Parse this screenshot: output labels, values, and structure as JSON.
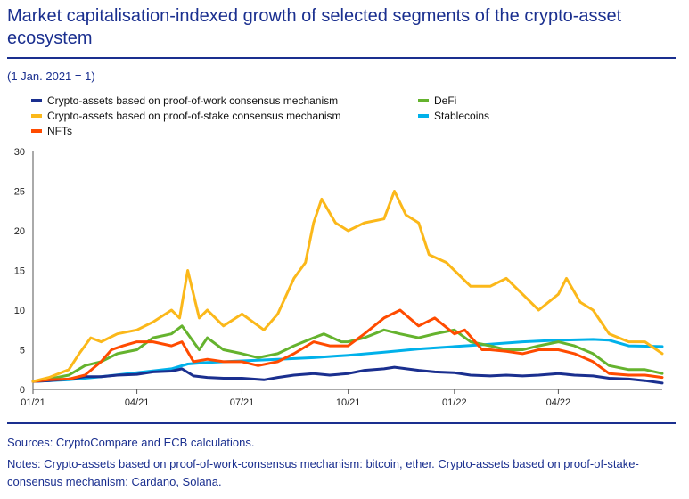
{
  "title": "Market capitalisation-indexed growth of selected segments of the crypto-asset ecosystem",
  "subtitle": "(1 Jan. 2021 = 1)",
  "sources": "Sources: CryptoCompare and ECB calculations.",
  "notes": "Notes: Crypto-assets based on proof-of-work-consensus mechanism: bitcoin, ether. Crypto-assets based on proof-of-stake-consensus mechanism: Cardano, Solana.",
  "chart_data": {
    "type": "line",
    "x_tick_labels": [
      "01/21",
      "04/21",
      "07/21",
      "10/21",
      "01/22",
      "04/22"
    ],
    "x_ticks": [
      "2021-01-01",
      "2021-04-01",
      "2021-07-01",
      "2021-10-01",
      "2022-01-01",
      "2022-04-01"
    ],
    "x_range": [
      "2021-01-01",
      "2022-06-30"
    ],
    "ylim": [
      0,
      30
    ],
    "y_ticks": [
      0,
      5,
      10,
      15,
      20,
      25,
      30
    ],
    "grid": false,
    "legend_position": "top",
    "series": [
      {
        "name": "Crypto-assets based on proof-of-work consensus mechanism",
        "color": "#1a2f8f",
        "points": [
          [
            "2021-01-01",
            1.0
          ],
          [
            "2021-01-15",
            1.1
          ],
          [
            "2021-02-01",
            1.3
          ],
          [
            "2021-02-15",
            1.6
          ],
          [
            "2021-03-01",
            1.6
          ],
          [
            "2021-03-15",
            1.8
          ],
          [
            "2021-04-01",
            1.9
          ],
          [
            "2021-04-15",
            2.2
          ],
          [
            "2021-05-01",
            2.3
          ],
          [
            "2021-05-10",
            2.6
          ],
          [
            "2021-05-20",
            1.7
          ],
          [
            "2021-06-01",
            1.5
          ],
          [
            "2021-06-15",
            1.4
          ],
          [
            "2021-07-01",
            1.4
          ],
          [
            "2021-07-20",
            1.2
          ],
          [
            "2021-08-01",
            1.5
          ],
          [
            "2021-08-15",
            1.8
          ],
          [
            "2021-09-01",
            2.0
          ],
          [
            "2021-09-15",
            1.8
          ],
          [
            "2021-10-01",
            2.0
          ],
          [
            "2021-10-15",
            2.4
          ],
          [
            "2021-11-01",
            2.6
          ],
          [
            "2021-11-10",
            2.8
          ],
          [
            "2021-12-01",
            2.4
          ],
          [
            "2021-12-15",
            2.2
          ],
          [
            "2022-01-01",
            2.1
          ],
          [
            "2022-01-15",
            1.8
          ],
          [
            "2022-02-01",
            1.7
          ],
          [
            "2022-02-15",
            1.8
          ],
          [
            "2022-03-01",
            1.7
          ],
          [
            "2022-03-15",
            1.8
          ],
          [
            "2022-04-01",
            2.0
          ],
          [
            "2022-04-15",
            1.8
          ],
          [
            "2022-05-01",
            1.7
          ],
          [
            "2022-05-15",
            1.4
          ],
          [
            "2022-06-01",
            1.3
          ],
          [
            "2022-06-15",
            1.1
          ],
          [
            "2022-06-30",
            0.8
          ]
        ]
      },
      {
        "name": "Crypto-assets based on proof-of-stake consensus mechanism",
        "color": "#fbb81a",
        "points": [
          [
            "2021-01-01",
            1.0
          ],
          [
            "2021-01-15",
            1.5
          ],
          [
            "2021-02-01",
            2.5
          ],
          [
            "2021-02-10",
            4.5
          ],
          [
            "2021-02-20",
            6.5
          ],
          [
            "2021-03-01",
            6.0
          ],
          [
            "2021-03-15",
            7.0
          ],
          [
            "2021-04-01",
            7.5
          ],
          [
            "2021-04-15",
            8.5
          ],
          [
            "2021-05-01",
            10.0
          ],
          [
            "2021-05-08",
            9.0
          ],
          [
            "2021-05-15",
            15.0
          ],
          [
            "2021-05-25",
            9.0
          ],
          [
            "2021-06-01",
            10.0
          ],
          [
            "2021-06-15",
            8.0
          ],
          [
            "2021-07-01",
            9.5
          ],
          [
            "2021-07-20",
            7.5
          ],
          [
            "2021-08-01",
            9.5
          ],
          [
            "2021-08-15",
            14.0
          ],
          [
            "2021-08-25",
            16.0
          ],
          [
            "2021-09-01",
            21.0
          ],
          [
            "2021-09-08",
            24.0
          ],
          [
            "2021-09-20",
            21.0
          ],
          [
            "2021-10-01",
            20.0
          ],
          [
            "2021-10-15",
            21.0
          ],
          [
            "2021-11-01",
            21.5
          ],
          [
            "2021-11-10",
            25.0
          ],
          [
            "2021-11-20",
            22.0
          ],
          [
            "2021-12-01",
            21.0
          ],
          [
            "2021-12-10",
            17.0
          ],
          [
            "2021-12-25",
            16.0
          ],
          [
            "2022-01-01",
            15.0
          ],
          [
            "2022-01-15",
            13.0
          ],
          [
            "2022-02-01",
            13.0
          ],
          [
            "2022-02-15",
            14.0
          ],
          [
            "2022-03-01",
            12.0
          ],
          [
            "2022-03-15",
            10.0
          ],
          [
            "2022-04-01",
            12.0
          ],
          [
            "2022-04-08",
            14.0
          ],
          [
            "2022-04-20",
            11.0
          ],
          [
            "2022-05-01",
            10.0
          ],
          [
            "2022-05-15",
            7.0
          ],
          [
            "2022-06-01",
            6.0
          ],
          [
            "2022-06-15",
            6.0
          ],
          [
            "2022-06-30",
            4.5
          ]
        ]
      },
      {
        "name": "NFTs",
        "color": "#ff4b00",
        "points": [
          [
            "2021-01-01",
            1.0
          ],
          [
            "2021-01-15",
            1.2
          ],
          [
            "2021-02-01",
            1.3
          ],
          [
            "2021-02-15",
            1.8
          ],
          [
            "2021-03-01",
            3.5
          ],
          [
            "2021-03-10",
            5.0
          ],
          [
            "2021-03-20",
            5.5
          ],
          [
            "2021-04-01",
            6.0
          ],
          [
            "2021-04-15",
            6.0
          ],
          [
            "2021-05-01",
            5.5
          ],
          [
            "2021-05-10",
            6.0
          ],
          [
            "2021-05-20",
            3.5
          ],
          [
            "2021-06-01",
            3.8
          ],
          [
            "2021-06-15",
            3.5
          ],
          [
            "2021-07-01",
            3.5
          ],
          [
            "2021-07-15",
            3.0
          ],
          [
            "2021-08-01",
            3.5
          ],
          [
            "2021-08-15",
            4.5
          ],
          [
            "2021-09-01",
            6.0
          ],
          [
            "2021-09-15",
            5.5
          ],
          [
            "2021-10-01",
            5.5
          ],
          [
            "2021-10-15",
            7.0
          ],
          [
            "2021-11-01",
            9.0
          ],
          [
            "2021-11-15",
            10.0
          ],
          [
            "2021-12-01",
            8.0
          ],
          [
            "2021-12-15",
            9.0
          ],
          [
            "2022-01-01",
            7.0
          ],
          [
            "2022-01-10",
            7.5
          ],
          [
            "2022-01-25",
            5.0
          ],
          [
            "2022-02-01",
            5.0
          ],
          [
            "2022-02-15",
            4.8
          ],
          [
            "2022-03-01",
            4.5
          ],
          [
            "2022-03-15",
            5.0
          ],
          [
            "2022-04-01",
            5.0
          ],
          [
            "2022-04-15",
            4.5
          ],
          [
            "2022-05-01",
            3.5
          ],
          [
            "2022-05-15",
            2.0
          ],
          [
            "2022-06-01",
            1.8
          ],
          [
            "2022-06-15",
            1.8
          ],
          [
            "2022-06-30",
            1.5
          ]
        ]
      },
      {
        "name": "DeFi",
        "color": "#65b32e",
        "points": [
          [
            "2021-01-01",
            1.0
          ],
          [
            "2021-01-15",
            1.3
          ],
          [
            "2021-02-01",
            1.8
          ],
          [
            "2021-02-15",
            3.0
          ],
          [
            "2021-03-01",
            3.5
          ],
          [
            "2021-03-15",
            4.5
          ],
          [
            "2021-04-01",
            5.0
          ],
          [
            "2021-04-15",
            6.5
          ],
          [
            "2021-05-01",
            7.0
          ],
          [
            "2021-05-10",
            8.0
          ],
          [
            "2021-05-25",
            5.0
          ],
          [
            "2021-06-01",
            6.5
          ],
          [
            "2021-06-15",
            5.0
          ],
          [
            "2021-07-01",
            4.5
          ],
          [
            "2021-07-15",
            4.0
          ],
          [
            "2021-08-01",
            4.5
          ],
          [
            "2021-08-15",
            5.5
          ],
          [
            "2021-09-01",
            6.5
          ],
          [
            "2021-09-10",
            7.0
          ],
          [
            "2021-09-25",
            6.0
          ],
          [
            "2021-10-01",
            6.0
          ],
          [
            "2021-10-15",
            6.5
          ],
          [
            "2021-11-01",
            7.5
          ],
          [
            "2021-11-15",
            7.0
          ],
          [
            "2021-12-01",
            6.5
          ],
          [
            "2021-12-15",
            7.0
          ],
          [
            "2022-01-01",
            7.5
          ],
          [
            "2022-01-15",
            6.0
          ],
          [
            "2022-02-01",
            5.5
          ],
          [
            "2022-02-15",
            5.0
          ],
          [
            "2022-03-01",
            5.0
          ],
          [
            "2022-03-15",
            5.5
          ],
          [
            "2022-04-01",
            6.0
          ],
          [
            "2022-04-15",
            5.5
          ],
          [
            "2022-05-01",
            4.5
          ],
          [
            "2022-05-15",
            3.0
          ],
          [
            "2022-06-01",
            2.5
          ],
          [
            "2022-06-15",
            2.5
          ],
          [
            "2022-06-30",
            2.0
          ]
        ]
      },
      {
        "name": "Stablecoins",
        "color": "#00b1ea",
        "points": [
          [
            "2021-01-01",
            1.0
          ],
          [
            "2021-02-01",
            1.2
          ],
          [
            "2021-03-01",
            1.6
          ],
          [
            "2021-04-01",
            2.1
          ],
          [
            "2021-05-01",
            2.6
          ],
          [
            "2021-05-15",
            3.2
          ],
          [
            "2021-06-01",
            3.4
          ],
          [
            "2021-07-01",
            3.6
          ],
          [
            "2021-08-01",
            3.8
          ],
          [
            "2021-09-01",
            4.0
          ],
          [
            "2021-10-01",
            4.3
          ],
          [
            "2021-11-01",
            4.7
          ],
          [
            "2021-12-01",
            5.1
          ],
          [
            "2022-01-01",
            5.4
          ],
          [
            "2022-02-01",
            5.7
          ],
          [
            "2022-03-01",
            6.0
          ],
          [
            "2022-04-01",
            6.2
          ],
          [
            "2022-05-01",
            6.3
          ],
          [
            "2022-05-15",
            6.2
          ],
          [
            "2022-06-01",
            5.5
          ],
          [
            "2022-06-30",
            5.4
          ]
        ]
      }
    ]
  }
}
